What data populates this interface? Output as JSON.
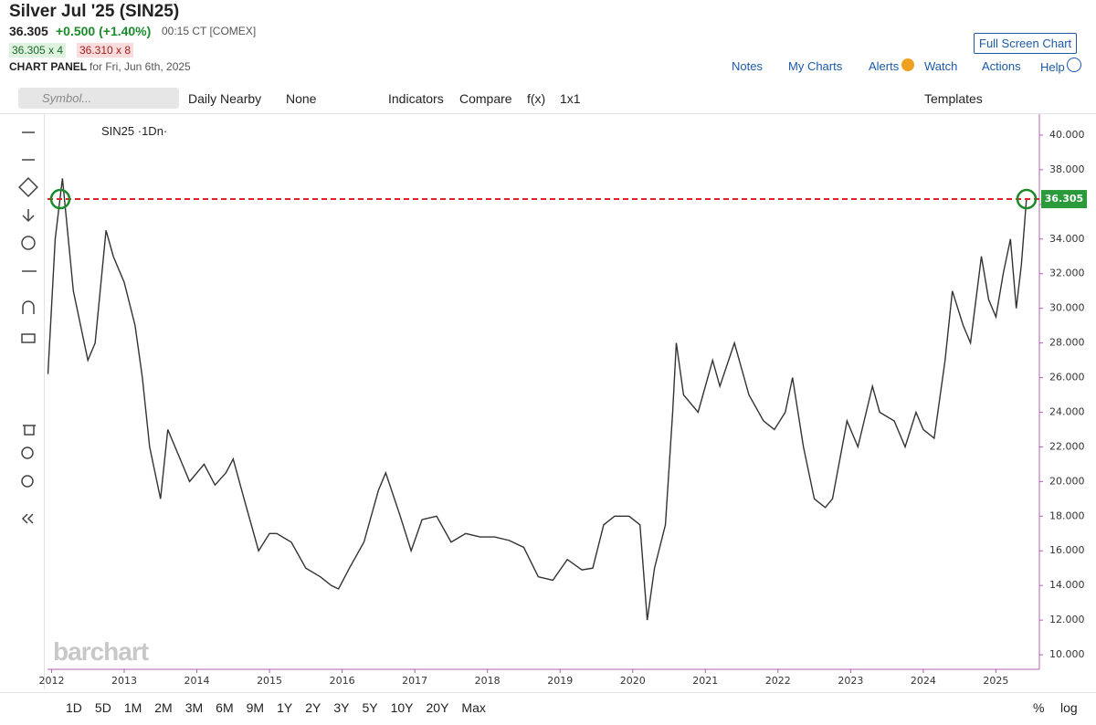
{
  "header": {
    "title": "Silver Jul '25 (SIN25)",
    "last": "36.305",
    "change": "+0.500 (+1.40%)",
    "time": "00:15 CT [COMEX]",
    "bid": "36.305 x 4",
    "ask": "36.310 x 8",
    "panel": "CHART PANEL",
    "panel_date": "for Fri, Jun 6th, 2025",
    "full_screen": "Full Screen Chart",
    "menu": [
      "Notes",
      "My Charts",
      "Alerts",
      "Watch",
      "Actions",
      "Help"
    ]
  },
  "toolbar": {
    "symbol_placeholder": "Symbol...",
    "items": [
      "Daily Nearby",
      "None",
      "Indicators",
      "Compare",
      "f(x)",
      "1x1"
    ],
    "templates": "Templates"
  },
  "legend": "SIN25 ·1Dn·",
  "watermark": "barchart",
  "periods": [
    "1D",
    "5D",
    "1M",
    "2M",
    "3M",
    "6M",
    "9M",
    "1Y",
    "2Y",
    "3Y",
    "5Y",
    "10Y",
    "20Y",
    "Max"
  ],
  "scale_options": [
    "%",
    "log"
  ],
  "chart_data": {
    "type": "line",
    "color": "#333333",
    "x": [
      2011.95,
      2012.05,
      2012.15,
      2012.3,
      2012.5,
      2012.6,
      2012.75,
      2012.85,
      2013.0,
      2013.15,
      2013.25,
      2013.35,
      2013.5,
      2013.6,
      2013.75,
      2013.9,
      2014.1,
      2014.25,
      2014.4,
      2014.5,
      2014.65,
      2014.85,
      2015.0,
      2015.1,
      2015.3,
      2015.5,
      2015.7,
      2015.85,
      2015.95,
      2016.1,
      2016.3,
      2016.5,
      2016.6,
      2016.8,
      2016.95,
      2017.1,
      2017.3,
      2017.5,
      2017.7,
      2017.9,
      2018.1,
      2018.3,
      2018.5,
      2018.7,
      2018.9,
      2019.1,
      2019.3,
      2019.45,
      2019.6,
      2019.75,
      2019.95,
      2020.1,
      2020.2,
      2020.3,
      2020.45,
      2020.55,
      2020.6,
      2020.7,
      2020.9,
      2021.1,
      2021.2,
      2021.4,
      2021.6,
      2021.8,
      2021.95,
      2022.1,
      2022.2,
      2022.35,
      2022.5,
      2022.65,
      2022.75,
      2022.95,
      2023.1,
      2023.3,
      2023.4,
      2023.6,
      2023.75,
      2023.9,
      2024.0,
      2024.15,
      2024.3,
      2024.4,
      2024.55,
      2024.65,
      2024.8,
      2024.9,
      2025.0,
      2025.1,
      2025.2,
      2025.28,
      2025.35,
      2025.42
    ],
    "values": [
      26.2,
      34,
      37.5,
      31,
      27,
      28,
      34.5,
      33,
      31.5,
      29,
      26,
      22,
      19,
      23,
      21.5,
      20,
      21,
      19.8,
      20.5,
      21.3,
      19,
      16,
      17,
      17,
      16.5,
      15,
      14.5,
      14,
      13.8,
      15,
      16.5,
      19.5,
      20.5,
      18,
      16,
      17.8,
      18,
      16.5,
      17,
      16.8,
      16.8,
      16.6,
      16.2,
      14.5,
      14.3,
      15.5,
      14.9,
      15,
      17.5,
      18,
      18,
      17.5,
      12,
      15,
      17.5,
      24,
      28,
      25,
      24,
      27,
      25.5,
      28,
      25,
      23.5,
      23,
      24,
      26,
      22,
      19,
      18.5,
      19,
      23.5,
      22,
      25.5,
      24,
      23.5,
      22,
      24,
      23,
      22.5,
      27,
      31,
      29,
      28,
      33,
      30.5,
      29.5,
      32,
      34,
      30,
      32.5,
      36.3
    ],
    "xlim": [
      2011.944,
      2025.598
    ],
    "ylim": [
      9.16,
      41.21
    ],
    "xticks": [
      2012,
      2013,
      2014,
      2015,
      2016,
      2017,
      2018,
      2019,
      2020,
      2021,
      2022,
      2023,
      2024,
      2025
    ],
    "yticks": [
      {
        "value": 10,
        "label": "10.000"
      },
      {
        "value": 12,
        "label": "12.000"
      },
      {
        "value": 14,
        "label": "14.000"
      },
      {
        "value": 16,
        "label": "16.000"
      },
      {
        "value": 18,
        "label": "18.000"
      },
      {
        "value": 20,
        "label": "20.000"
      },
      {
        "value": 22,
        "label": "22.000"
      },
      {
        "value": 24,
        "label": "24.000"
      },
      {
        "value": 26,
        "label": "26.000"
      },
      {
        "value": 28,
        "label": "28.000"
      },
      {
        "value": 30,
        "label": "30.000"
      },
      {
        "value": 32,
        "label": "32.000"
      },
      {
        "value": 34,
        "label": "34.000"
      },
      {
        "value": 36,
        "label": "36.000"
      },
      {
        "value": 38,
        "label": "38.000"
      },
      {
        "value": 40,
        "label": "40.000"
      }
    ],
    "last_price": 36.305,
    "reference_color": "#e0202a"
  }
}
